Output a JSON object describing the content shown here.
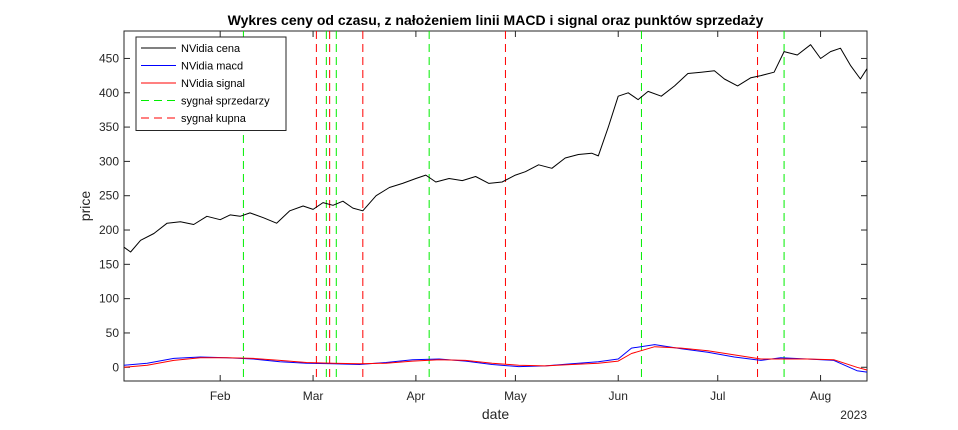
{
  "chart_data": {
    "type": "line",
    "title": "Wykres ceny od czasu, z nałożeniem linii MACD i signal oraz punktów sprzedaży",
    "xlabel": "date",
    "ylabel": "price",
    "year_label": "2023",
    "x_tick_labels": [
      "Feb",
      "Mar",
      "Apr",
      "May",
      "Jun",
      "Jul",
      "Aug"
    ],
    "x_tick_dates": [
      "2023-02-01",
      "2023-03-01",
      "2023-04-01",
      "2023-05-01",
      "2023-06-01",
      "2023-07-01",
      "2023-08-01"
    ],
    "xlim": [
      "2023-01-03",
      "2023-08-15"
    ],
    "ylim": [
      -20,
      490
    ],
    "y_ticks": [
      0,
      50,
      100,
      150,
      200,
      250,
      300,
      350,
      400,
      450
    ],
    "grid": false,
    "legend_position": "top-left",
    "series": [
      {
        "name": "NVidia cena",
        "color": "#000000",
        "dashed": false,
        "x": [
          "2023-01-03",
          "2023-01-05",
          "2023-01-08",
          "2023-01-12",
          "2023-01-16",
          "2023-01-20",
          "2023-01-24",
          "2023-01-28",
          "2023-02-01",
          "2023-02-04",
          "2023-02-07",
          "2023-02-10",
          "2023-02-14",
          "2023-02-18",
          "2023-02-22",
          "2023-02-26",
          "2023-03-01",
          "2023-03-04",
          "2023-03-07",
          "2023-03-10",
          "2023-03-13",
          "2023-03-16",
          "2023-03-20",
          "2023-03-24",
          "2023-03-28",
          "2023-04-01",
          "2023-04-04",
          "2023-04-07",
          "2023-04-11",
          "2023-04-15",
          "2023-04-19",
          "2023-04-23",
          "2023-04-27",
          "2023-05-01",
          "2023-05-04",
          "2023-05-08",
          "2023-05-12",
          "2023-05-16",
          "2023-05-20",
          "2023-05-24",
          "2023-05-26",
          "2023-05-29",
          "2023-06-01",
          "2023-06-04",
          "2023-06-07",
          "2023-06-10",
          "2023-06-14",
          "2023-06-18",
          "2023-06-22",
          "2023-06-26",
          "2023-06-30",
          "2023-07-03",
          "2023-07-07",
          "2023-07-11",
          "2023-07-14",
          "2023-07-18",
          "2023-07-21",
          "2023-07-25",
          "2023-07-29",
          "2023-08-01",
          "2023-08-04",
          "2023-08-07",
          "2023-08-10",
          "2023-08-13",
          "2023-08-15"
        ],
        "y": [
          175,
          168,
          185,
          195,
          210,
          212,
          208,
          220,
          215,
          222,
          220,
          225,
          218,
          210,
          228,
          235,
          230,
          240,
          236,
          242,
          232,
          228,
          250,
          262,
          268,
          275,
          280,
          270,
          275,
          272,
          278,
          268,
          270,
          280,
          285,
          295,
          290,
          305,
          310,
          312,
          308,
          350,
          395,
          400,
          390,
          402,
          395,
          410,
          428,
          430,
          432,
          420,
          410,
          422,
          425,
          430,
          460,
          455,
          470,
          450,
          460,
          465,
          440,
          420,
          435
        ]
      },
      {
        "name": "NVidia macd",
        "color": "#0000ff",
        "dashed": false,
        "x": [
          "2023-01-03",
          "2023-01-10",
          "2023-01-18",
          "2023-01-26",
          "2023-02-03",
          "2023-02-11",
          "2023-02-19",
          "2023-02-27",
          "2023-03-07",
          "2023-03-15",
          "2023-03-23",
          "2023-03-31",
          "2023-04-08",
          "2023-04-16",
          "2023-04-24",
          "2023-05-02",
          "2023-05-10",
          "2023-05-18",
          "2023-05-26",
          "2023-06-01",
          "2023-06-05",
          "2023-06-12",
          "2023-06-20",
          "2023-06-28",
          "2023-07-06",
          "2023-07-14",
          "2023-07-20",
          "2023-07-28",
          "2023-08-05",
          "2023-08-12",
          "2023-08-15"
        ],
        "y": [
          3,
          6,
          13,
          15,
          14,
          12,
          8,
          6,
          5,
          4,
          7,
          11,
          12,
          9,
          4,
          1,
          2,
          5,
          8,
          12,
          28,
          33,
          27,
          22,
          15,
          10,
          14,
          12,
          10,
          -5,
          -7
        ]
      },
      {
        "name": "NVidia signal",
        "color": "#ff0000",
        "dashed": false,
        "x": [
          "2023-01-03",
          "2023-01-10",
          "2023-01-18",
          "2023-01-26",
          "2023-02-03",
          "2023-02-11",
          "2023-02-19",
          "2023-02-27",
          "2023-03-07",
          "2023-03-15",
          "2023-03-23",
          "2023-03-31",
          "2023-04-08",
          "2023-04-16",
          "2023-04-24",
          "2023-05-02",
          "2023-05-10",
          "2023-05-18",
          "2023-05-26",
          "2023-06-01",
          "2023-06-05",
          "2023-06-12",
          "2023-06-20",
          "2023-06-28",
          "2023-07-06",
          "2023-07-14",
          "2023-07-20",
          "2023-07-28",
          "2023-08-05",
          "2023-08-12",
          "2023-08-15"
        ],
        "y": [
          0,
          3,
          10,
          14,
          14,
          13,
          10,
          7,
          6,
          5,
          6,
          9,
          11,
          10,
          6,
          3,
          2,
          4,
          6,
          9,
          20,
          30,
          28,
          24,
          18,
          12,
          12,
          12,
          11,
          0,
          -4
        ]
      },
      {
        "name": "sygnał sprzedarzy",
        "color": "#00ee00",
        "dashed": true,
        "x": [],
        "y": []
      },
      {
        "name": "sygnał kupna",
        "color": "#ff0000",
        "dashed": true,
        "x": [],
        "y": []
      }
    ],
    "sell_signal_dates": [
      "2023-02-08",
      "2023-03-05",
      "2023-03-08",
      "2023-04-05",
      "2023-06-08",
      "2023-07-21"
    ],
    "buy_signal_dates": [
      "2023-03-02",
      "2023-03-06",
      "2023-03-16",
      "2023-04-28",
      "2023-07-13"
    ]
  }
}
